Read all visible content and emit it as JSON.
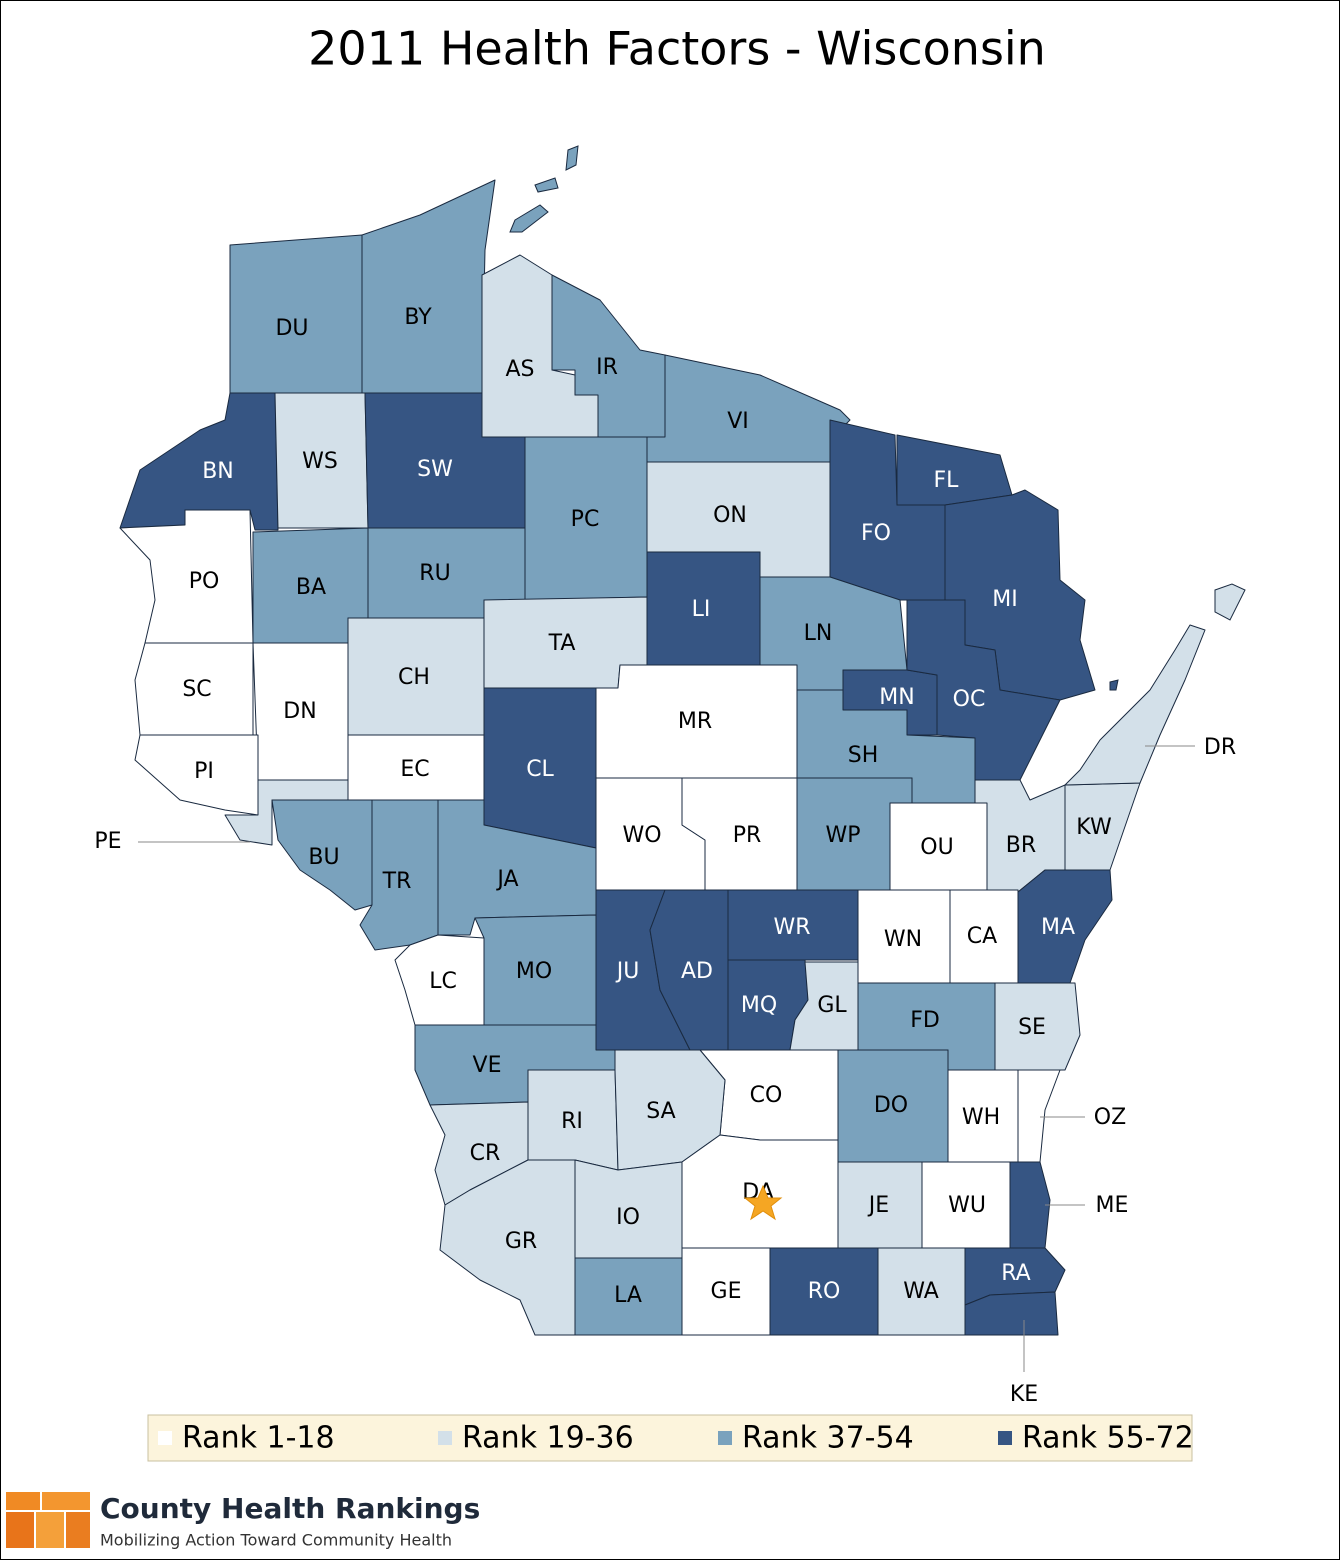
{
  "title": "2011 Health Factors - Wisconsin",
  "counties": [
    {
      "label": "DU",
      "color": "#7aa2bd"
    },
    {
      "label": "BY",
      "color": "#7aa2bd"
    },
    {
      "label": "AS",
      "color": "#d3e0e9"
    },
    {
      "label": "IR",
      "color": "#7aa2bd"
    },
    {
      "label": "VI",
      "color": "#7aa2bd"
    },
    {
      "label": "BN",
      "color": "#365583"
    },
    {
      "label": "WS",
      "color": "#d3e0e9"
    },
    {
      "label": "SW",
      "color": "#365583"
    },
    {
      "label": "PC",
      "color": "#7aa2bd"
    },
    {
      "label": "ON",
      "color": "#d3e0e9"
    },
    {
      "label": "FO",
      "color": "#365583"
    },
    {
      "label": "FL",
      "color": "#365583"
    },
    {
      "label": "MI",
      "color": "#365583"
    },
    {
      "label": "PO",
      "color": "#ffffff"
    },
    {
      "label": "BA",
      "color": "#7aa2bd"
    },
    {
      "label": "RU",
      "color": "#7aa2bd"
    },
    {
      "label": "TA",
      "color": "#d3e0e9"
    },
    {
      "label": "LI",
      "color": "#365583"
    },
    {
      "label": "LN",
      "color": "#7aa2bd"
    },
    {
      "label": "SC",
      "color": "#ffffff"
    },
    {
      "label": "DN",
      "color": "#ffffff"
    },
    {
      "label": "CH",
      "color": "#d3e0e9"
    },
    {
      "label": "MR",
      "color": "#ffffff"
    },
    {
      "label": "CL",
      "color": "#365583"
    },
    {
      "label": "MN",
      "color": "#365583"
    },
    {
      "label": "OC",
      "color": "#365583"
    },
    {
      "label": "SH",
      "color": "#7aa2bd"
    },
    {
      "label": "PI",
      "color": "#ffffff"
    },
    {
      "label": "EC",
      "color": "#ffffff"
    },
    {
      "label": "PE",
      "color": "#d3e0e9"
    },
    {
      "label": "BU",
      "color": "#7aa2bd"
    },
    {
      "label": "TR",
      "color": "#7aa2bd"
    },
    {
      "label": "JA",
      "color": "#7aa2bd"
    },
    {
      "label": "WO",
      "color": "#ffffff"
    },
    {
      "label": "PR",
      "color": "#ffffff"
    },
    {
      "label": "WP",
      "color": "#7aa2bd"
    },
    {
      "label": "OU",
      "color": "#ffffff"
    },
    {
      "label": "BR",
      "color": "#d3e0e9"
    },
    {
      "label": "KW",
      "color": "#d3e0e9"
    },
    {
      "label": "DR",
      "color": "#d3e0e9"
    },
    {
      "label": "MA",
      "color": "#365583"
    },
    {
      "label": "WN",
      "color": "#ffffff"
    },
    {
      "label": "CA",
      "color": "#ffffff"
    },
    {
      "label": "WR",
      "color": "#365583"
    },
    {
      "label": "JU",
      "color": "#365583"
    },
    {
      "label": "AD",
      "color": "#365583"
    },
    {
      "label": "MQ",
      "color": "#365583"
    },
    {
      "label": "GL",
      "color": "#d3e0e9"
    },
    {
      "label": "FD",
      "color": "#7aa2bd"
    },
    {
      "label": "SE",
      "color": "#d3e0e9"
    },
    {
      "label": "LC",
      "color": "#ffffff"
    },
    {
      "label": "MO",
      "color": "#7aa2bd"
    },
    {
      "label": "VE",
      "color": "#7aa2bd"
    },
    {
      "label": "CO",
      "color": "#ffffff"
    },
    {
      "label": "DO",
      "color": "#7aa2bd"
    },
    {
      "label": "WH",
      "color": "#ffffff"
    },
    {
      "label": "OZ",
      "color": "#ffffff"
    },
    {
      "label": "RI",
      "color": "#d3e0e9"
    },
    {
      "label": "SA",
      "color": "#d3e0e9"
    },
    {
      "label": "CR",
      "color": "#d3e0e9"
    },
    {
      "label": "DA",
      "color": "#ffffff"
    },
    {
      "label": "JE",
      "color": "#d3e0e9"
    },
    {
      "label": "WU",
      "color": "#ffffff"
    },
    {
      "label": "ME",
      "color": "#365583"
    },
    {
      "label": "IO",
      "color": "#d3e0e9"
    },
    {
      "label": "GR",
      "color": "#d3e0e9"
    },
    {
      "label": "LA",
      "color": "#7aa2bd"
    },
    {
      "label": "GE",
      "color": "#ffffff"
    },
    {
      "label": "RO",
      "color": "#365583"
    },
    {
      "label": "WA",
      "color": "#d3e0e9"
    },
    {
      "label": "RA",
      "color": "#365583"
    },
    {
      "label": "KE",
      "color": "#365583"
    }
  ],
  "legend": [
    {
      "label": "Rank 1-18",
      "color": "#ffffff"
    },
    {
      "label": "Rank 19-36",
      "color": "#d3e0e9"
    },
    {
      "label": "Rank 37-54",
      "color": "#7aa2bd"
    },
    {
      "label": "Rank 55-72",
      "color": "#365583"
    }
  ],
  "logo": {
    "name": "County Health Rankings",
    "tagline": "Mobilizing Action Toward Community Health"
  }
}
